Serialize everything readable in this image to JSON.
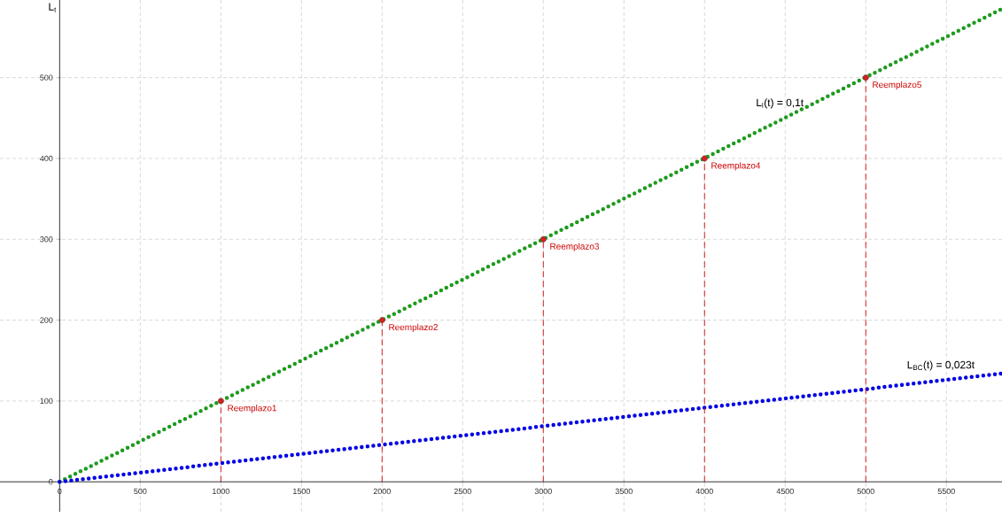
{
  "chart_data": {
    "type": "line",
    "ylabel": "L$_{t}$",
    "xlim": [
      -370,
      5845
    ],
    "ylim": [
      -37,
      596
    ],
    "xticks": [
      0,
      500,
      1000,
      1500,
      2000,
      2500,
      3000,
      3500,
      4000,
      4500,
      5000,
      5500
    ],
    "yticks": [
      0,
      100,
      200,
      300,
      400,
      500
    ],
    "grid": true,
    "series": [
      {
        "name": "L$_{l}$(t) = 0,1t",
        "color": "#1e9a1e",
        "line_style": "dotted",
        "x": [
          0,
          5845
        ],
        "values": [
          0,
          585
        ]
      },
      {
        "name": "L$_{BC}$(t) = 0,023t",
        "color": "#0000e6",
        "line_style": "dotted",
        "x": [
          0,
          5845
        ],
        "values": [
          0,
          134
        ]
      },
      {
        "type": "lollipop",
        "color": "#d42020",
        "line_style": "dashed",
        "x": [
          1000,
          2000,
          3000,
          4000,
          5000
        ],
        "values": [
          100,
          200,
          300,
          400,
          500
        ]
      }
    ],
    "annotations": [
      {
        "text": "Reemplazo1",
        "x": 1000,
        "y": 100
      },
      {
        "text": "Reemplazo2",
        "x": 2000,
        "y": 200
      },
      {
        "text": "Reemplazo3",
        "x": 3000,
        "y": 300
      },
      {
        "text": "Reemplazo4",
        "x": 4000,
        "y": 400
      },
      {
        "text": "Reemplazo5",
        "x": 5000,
        "y": 500
      }
    ]
  }
}
